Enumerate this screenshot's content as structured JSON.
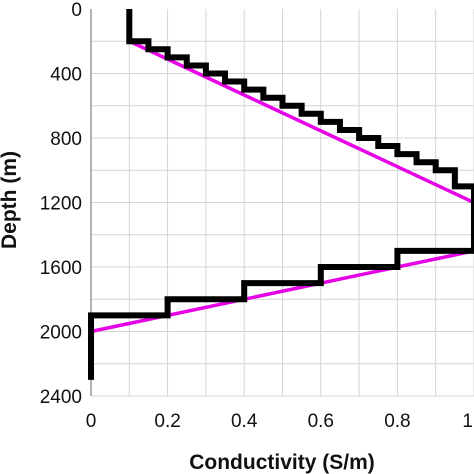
{
  "chart_data": {
    "type": "line",
    "xlabel": "Conductivity (S/m)",
    "ylabel": "Depth (m)",
    "xlim": [
      0,
      1
    ],
    "ylim": [
      0,
      2400
    ],
    "y_inverted": true,
    "xticks": [
      "0",
      "0.2",
      "0.4",
      "0.6",
      "0.8",
      "1"
    ],
    "yticks": [
      "0",
      "400",
      "800",
      "1200",
      "1600",
      "2000",
      "2400"
    ],
    "grid": true,
    "legend": "none",
    "colors": {
      "stepped": "#000000",
      "continuous": "#e600e6"
    },
    "series": [
      {
        "style": "continuous",
        "x": [
          0.1,
          0.1,
          1.0,
          1.0,
          0.0
        ],
        "y": [
          0,
          200,
          1200,
          1500,
          2000
        ]
      },
      {
        "style": "stepped",
        "x": [
          0.1,
          0.1,
          0.15,
          0.15,
          0.2,
          0.2,
          0.25,
          0.25,
          0.3,
          0.3,
          0.35,
          0.35,
          0.4,
          0.4,
          0.45,
          0.45,
          0.5,
          0.5,
          0.55,
          0.55,
          0.6,
          0.6,
          0.65,
          0.65,
          0.7,
          0.7,
          0.75,
          0.75,
          0.8,
          0.8,
          0.85,
          0.85,
          0.9,
          0.9,
          0.95,
          0.95,
          1.0,
          1.0,
          0.8,
          0.8,
          0.6,
          0.6,
          0.4,
          0.4,
          0.2,
          0.2,
          0.0,
          0.0
        ],
        "y": [
          0,
          200,
          200,
          250,
          250,
          300,
          300,
          350,
          350,
          400,
          400,
          450,
          450,
          500,
          500,
          550,
          550,
          600,
          600,
          650,
          650,
          700,
          700,
          750,
          750,
          800,
          800,
          850,
          850,
          900,
          900,
          950,
          950,
          1000,
          1000,
          1100,
          1100,
          1500,
          1500,
          1600,
          1600,
          1700,
          1700,
          1800,
          1800,
          1900,
          1900,
          2300
        ]
      }
    ]
  }
}
